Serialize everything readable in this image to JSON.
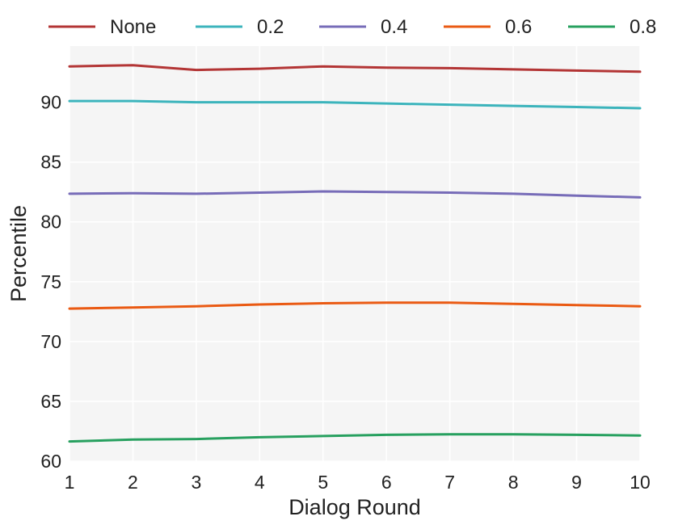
{
  "chart_data": {
    "type": "line",
    "title": "",
    "xlabel": "Dialog Round",
    "ylabel": "Percentile",
    "x": [
      1,
      2,
      3,
      4,
      5,
      6,
      7,
      8,
      9,
      10
    ],
    "x_ticks": [
      "1",
      "2",
      "3",
      "4",
      "5",
      "6",
      "7",
      "8",
      "9",
      "10"
    ],
    "y_ticks": [
      "60",
      "65",
      "70",
      "75",
      "80",
      "85",
      "90"
    ],
    "xlim": [
      1,
      10
    ],
    "ylim": [
      60,
      94.7
    ],
    "grid": true,
    "legend_position": "top",
    "series": [
      {
        "name": "None",
        "color": "#b33535",
        "values": [
          93.0,
          93.1,
          92.7,
          92.8,
          93.0,
          92.9,
          92.85,
          92.75,
          92.65,
          92.55
        ]
      },
      {
        "name": "0.2",
        "color": "#3cb4bc",
        "values": [
          90.1,
          90.1,
          90.0,
          90.0,
          90.0,
          89.9,
          89.8,
          89.7,
          89.6,
          89.5
        ]
      },
      {
        "name": "0.4",
        "color": "#776cb8",
        "values": [
          82.35,
          82.4,
          82.35,
          82.45,
          82.55,
          82.5,
          82.45,
          82.35,
          82.2,
          82.05
        ]
      },
      {
        "name": "0.6",
        "color": "#ea5a13",
        "values": [
          72.75,
          72.85,
          72.95,
          73.1,
          73.2,
          73.25,
          73.25,
          73.15,
          73.05,
          72.95
        ]
      },
      {
        "name": "0.8",
        "color": "#27a05f",
        "values": [
          61.65,
          61.8,
          61.85,
          62.0,
          62.1,
          62.2,
          62.25,
          62.25,
          62.2,
          62.15
        ]
      }
    ]
  }
}
